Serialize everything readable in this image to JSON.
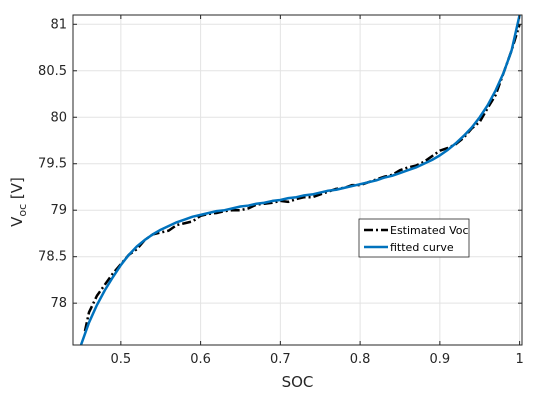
{
  "chart_data": {
    "type": "line",
    "xlabel": "SOC",
    "ylabel_main": "V",
    "ylabel_sub": "oc",
    "ylabel_unit": "[V]",
    "xlim": [
      0.44,
      1.003
    ],
    "ylim": [
      77.55,
      81.1
    ],
    "xticks": [
      0.5,
      0.6,
      0.7,
      0.8,
      0.9,
      1
    ],
    "xtick_labels": [
      "0.5",
      "0.6",
      "0.7",
      "0.8",
      "0.9",
      "1"
    ],
    "yticks": [
      78,
      78.5,
      79,
      79.5,
      80,
      80.5,
      81
    ],
    "ytick_labels": [
      "78",
      "78.5",
      "79",
      "79.5",
      "80",
      "80.5",
      "81"
    ],
    "grid": true,
    "legend_position": "inside-right",
    "series": [
      {
        "name": "Estimated Voc",
        "style": "dash-dot",
        "color": "#000000",
        "x": [
          0.455,
          0.46,
          0.47,
          0.48,
          0.49,
          0.5,
          0.51,
          0.52,
          0.53,
          0.54,
          0.55,
          0.56,
          0.57,
          0.58,
          0.59,
          0.6,
          0.61,
          0.62,
          0.63,
          0.64,
          0.65,
          0.66,
          0.67,
          0.68,
          0.69,
          0.7,
          0.71,
          0.72,
          0.73,
          0.74,
          0.75,
          0.76,
          0.77,
          0.78,
          0.79,
          0.8,
          0.81,
          0.82,
          0.83,
          0.84,
          0.85,
          0.86,
          0.87,
          0.88,
          0.89,
          0.9,
          0.91,
          0.92,
          0.93,
          0.94,
          0.95,
          0.96,
          0.97,
          0.98,
          0.99,
          1.0
        ],
        "y": [
          77.7,
          77.9,
          78.08,
          78.2,
          78.32,
          78.42,
          78.52,
          78.58,
          78.68,
          78.74,
          78.76,
          78.78,
          78.84,
          78.86,
          78.88,
          78.94,
          78.96,
          78.97,
          78.99,
          79.0,
          79.0,
          79.02,
          79.06,
          79.07,
          79.08,
          79.1,
          79.09,
          79.12,
          79.14,
          79.14,
          79.17,
          79.2,
          79.23,
          79.24,
          79.27,
          79.27,
          79.3,
          79.33,
          79.36,
          79.38,
          79.43,
          79.46,
          79.48,
          79.52,
          79.58,
          79.64,
          79.67,
          79.71,
          79.78,
          79.88,
          79.95,
          80.1,
          80.24,
          80.48,
          80.72,
          81.0
        ]
      },
      {
        "name": "fitted curve",
        "style": "solid",
        "color": "#0072BD",
        "x": [
          0.45,
          0.46,
          0.47,
          0.48,
          0.49,
          0.5,
          0.51,
          0.52,
          0.53,
          0.54,
          0.55,
          0.56,
          0.57,
          0.58,
          0.59,
          0.6,
          0.61,
          0.62,
          0.63,
          0.64,
          0.65,
          0.66,
          0.67,
          0.68,
          0.69,
          0.7,
          0.71,
          0.72,
          0.73,
          0.74,
          0.75,
          0.76,
          0.77,
          0.78,
          0.79,
          0.8,
          0.81,
          0.82,
          0.83,
          0.84,
          0.85,
          0.86,
          0.87,
          0.88,
          0.89,
          0.9,
          0.91,
          0.92,
          0.93,
          0.94,
          0.95,
          0.96,
          0.97,
          0.98,
          0.99,
          1.0
        ],
        "y": [
          77.55,
          77.79,
          77.98,
          78.14,
          78.28,
          78.41,
          78.52,
          78.61,
          78.68,
          78.74,
          78.79,
          78.83,
          78.87,
          78.9,
          78.93,
          78.95,
          78.97,
          78.99,
          79.0,
          79.02,
          79.04,
          79.05,
          79.07,
          79.08,
          79.1,
          79.11,
          79.13,
          79.14,
          79.16,
          79.17,
          79.19,
          79.21,
          79.22,
          79.24,
          79.26,
          79.28,
          79.3,
          79.32,
          79.35,
          79.37,
          79.4,
          79.43,
          79.46,
          79.5,
          79.54,
          79.59,
          79.65,
          79.72,
          79.8,
          79.89,
          80.0,
          80.13,
          80.29,
          80.48,
          80.72,
          81.1
        ]
      }
    ]
  }
}
